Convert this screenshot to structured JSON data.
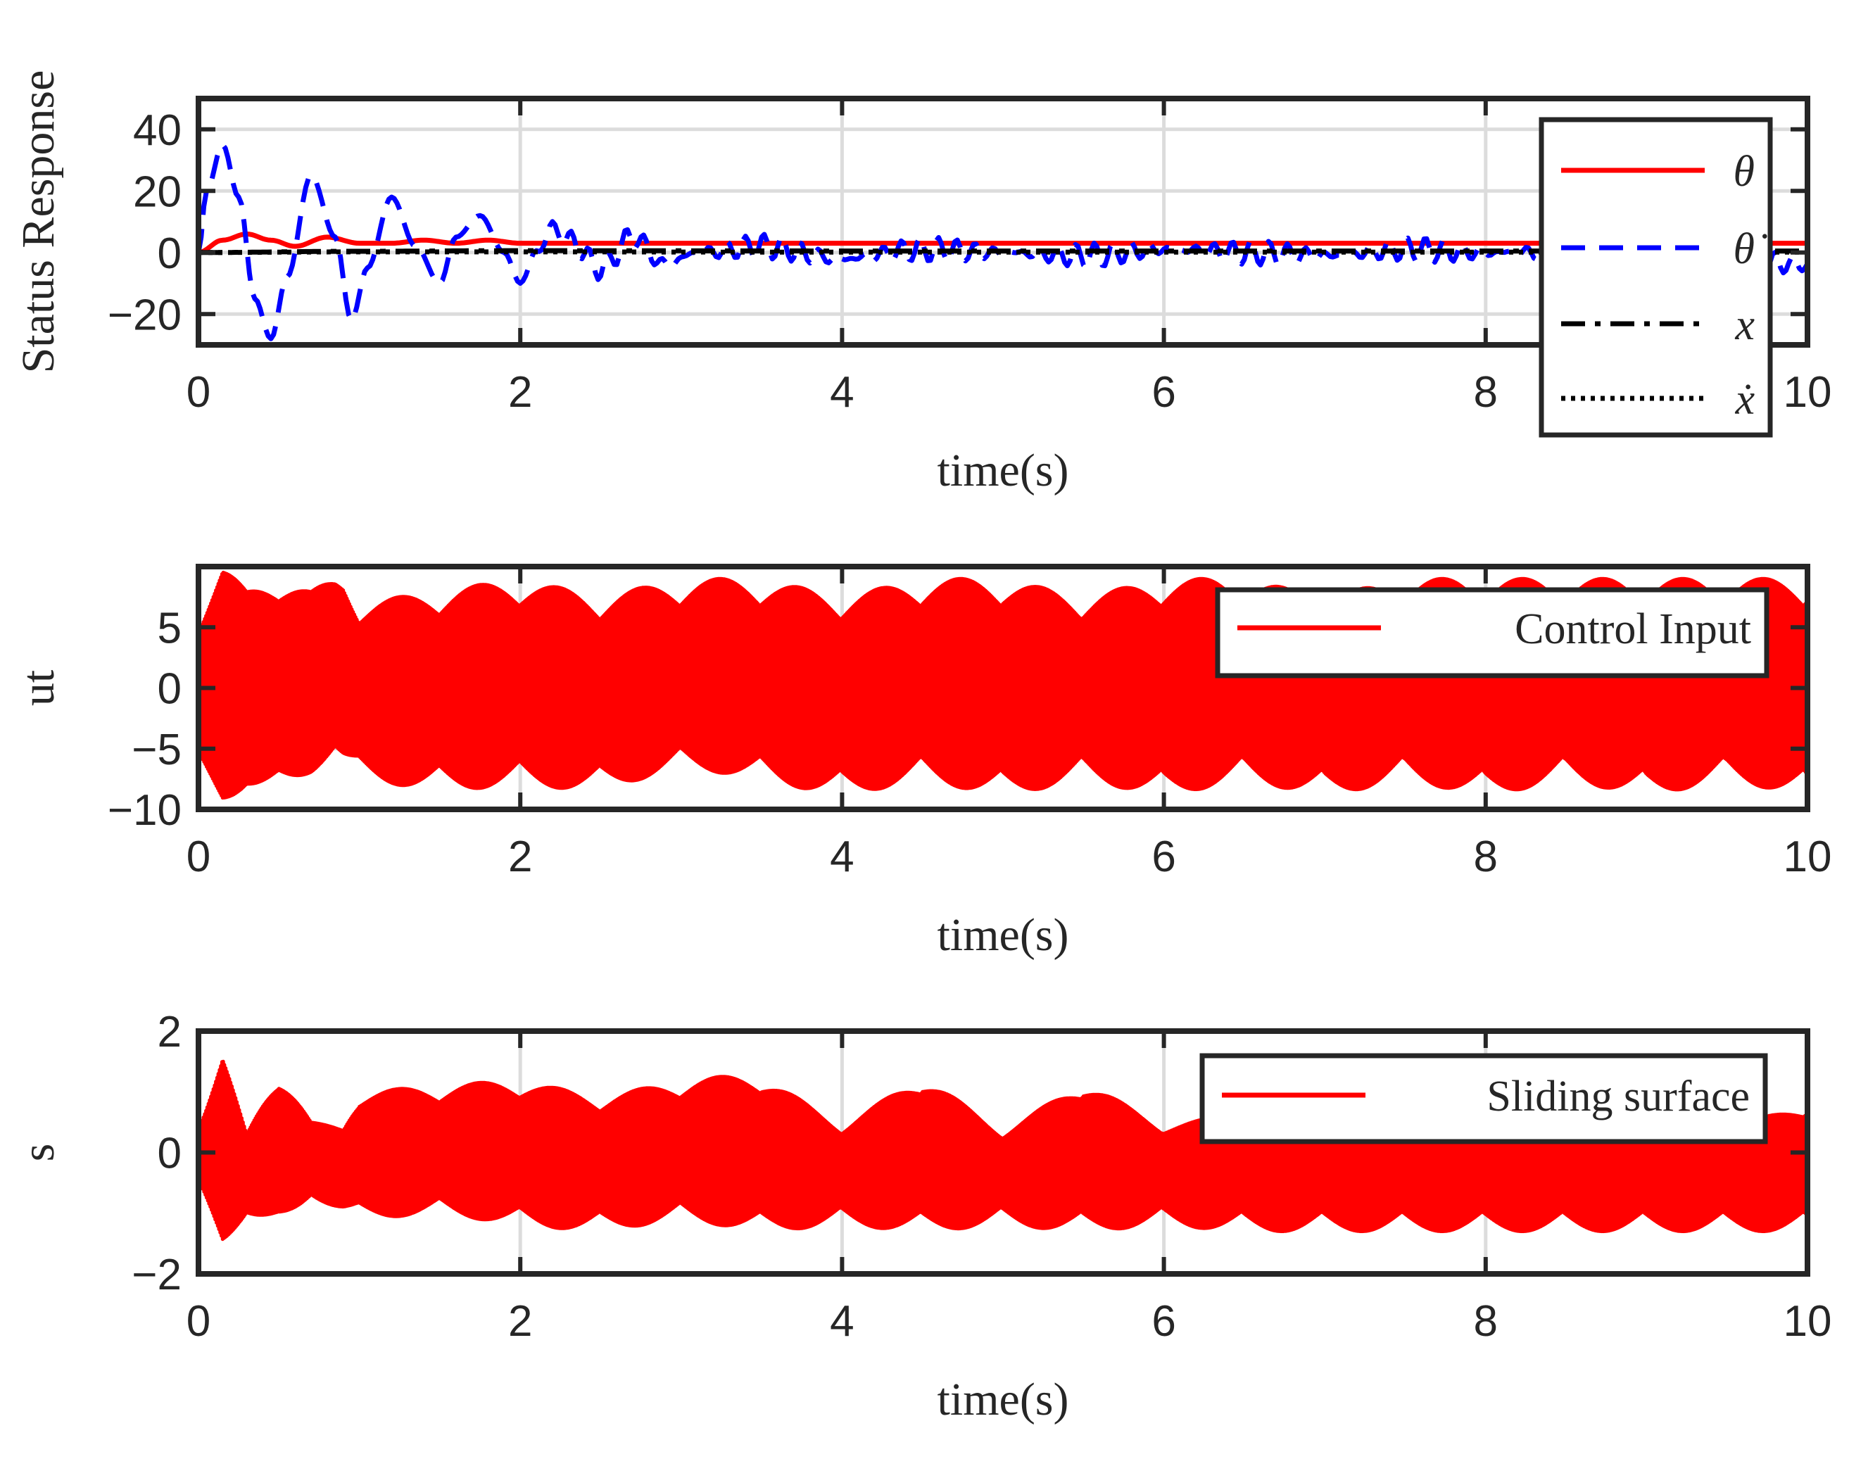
{
  "chart_data": [
    {
      "type": "line",
      "xlabel": "time(s)",
      "ylabel": "Status Response",
      "xlim": [
        0,
        10
      ],
      "ylim": [
        -30,
        50
      ],
      "xticks": [
        0,
        2,
        4,
        6,
        8,
        10
      ],
      "yticks": [
        -20,
        0,
        20,
        40
      ],
      "xtick_labels": [
        "0",
        "2",
        "4",
        "6",
        "8",
        "10"
      ],
      "ytick_labels": [
        "−20",
        "0",
        "20",
        "40"
      ],
      "grid": true,
      "legend_position": "top-right",
      "series": [
        {
          "name": "θ",
          "color": "#ff0000",
          "style": "solid",
          "x": [
            0,
            0.15,
            0.3,
            0.45,
            0.6,
            0.8,
            1.0,
            1.2,
            1.4,
            1.6,
            1.8,
            2.0,
            2.5,
            3,
            4,
            5,
            6,
            7,
            8,
            9,
            10
          ],
          "y": [
            0,
            4,
            6,
            4,
            2,
            5,
            3,
            3,
            4,
            3,
            4,
            3,
            3,
            3,
            3,
            3,
            3,
            3,
            3,
            3,
            3
          ]
        },
        {
          "name": "θ̇",
          "color": "#0000ff",
          "style": "dashed",
          "x": [
            0,
            0.05,
            0.15,
            0.25,
            0.35,
            0.45,
            0.55,
            0.7,
            0.85,
            0.95,
            1.05,
            1.2,
            1.35,
            1.5,
            1.6,
            1.75,
            1.9,
            2.0,
            2.1,
            2.2,
            2.3,
            2.5,
            2.7,
            2.9,
            3.1,
            3.5,
            4,
            4.5,
            5,
            5.5,
            6,
            6.5,
            7,
            7.5,
            8,
            8.5,
            9,
            9.5,
            10
          ],
          "y": [
            0,
            20,
            35,
            18,
            -15,
            -28,
            -8,
            25,
            5,
            -22,
            -5,
            18,
            2,
            -10,
            5,
            12,
            0,
            -10,
            0,
            8,
            4,
            -5,
            5,
            -4,
            0,
            2,
            -2,
            1,
            0,
            -1,
            1,
            0,
            -1,
            1,
            0,
            0,
            1,
            -2,
            -4
          ]
        },
        {
          "name": "x",
          "color": "#000000",
          "style": "dashdot",
          "x": [
            0,
            1,
            2,
            4,
            6,
            8,
            10
          ],
          "y": [
            0,
            0.4,
            0.6,
            0.5,
            0.5,
            0.5,
            0.5
          ]
        },
        {
          "name": "ẋ",
          "color": "#000000",
          "style": "dotted",
          "x": [
            0,
            1,
            2,
            4,
            6,
            8,
            10
          ],
          "y": [
            0,
            0.2,
            0.2,
            0.1,
            0.1,
            0.1,
            0.1
          ]
        }
      ]
    },
    {
      "type": "line",
      "xlabel": "time(s)",
      "ylabel": "ut",
      "xlim": [
        0,
        10
      ],
      "ylim": [
        -10,
        10
      ],
      "xticks": [
        0,
        2,
        4,
        6,
        8,
        10
      ],
      "yticks": [
        -10,
        -5,
        0,
        5
      ],
      "xtick_labels": [
        "0",
        "2",
        "4",
        "6",
        "8",
        "10"
      ],
      "ytick_labels": [
        "−10",
        "−5",
        "0",
        "5"
      ],
      "grid": true,
      "legend_position": "top-right",
      "series": [
        {
          "name": "Control Input",
          "color": "#ff0000",
          "style": "solid",
          "x": [
            0,
            0.15,
            0.3,
            0.5,
            0.7,
            0.85,
            0.9,
            1.0,
            1.5,
            2.0,
            2.5,
            3.0,
            3.5,
            4.0,
            4.5,
            5.0,
            5.5,
            6.0,
            6.5,
            7.0,
            7.5,
            8.0,
            8.5,
            9.0,
            9.5,
            10
          ],
          "upper": [
            6,
            10,
            8,
            9.5,
            8,
            9,
            9,
            7,
            8,
            9,
            7.5,
            9,
            9,
            7.5,
            9,
            9,
            7.5,
            9,
            9,
            7.5,
            9,
            9,
            9,
            9,
            9,
            9
          ],
          "lower": [
            -7,
            -9.5,
            -8,
            -9,
            -7,
            -5,
            -6,
            -7.5,
            -8.5,
            -8,
            -8.5,
            -6.5,
            -7.5,
            -9,
            -7.5,
            -9,
            -7.5,
            -9,
            -7.5,
            -9,
            -7.5,
            -9,
            -7.5,
            -9,
            -7.5,
            -9
          ]
        }
      ]
    },
    {
      "type": "line",
      "xlabel": "time(s)",
      "ylabel": "s",
      "xlim": [
        0,
        10
      ],
      "ylim": [
        -2,
        2
      ],
      "xticks": [
        0,
        2,
        4,
        6,
        8,
        10
      ],
      "yticks": [
        -2,
        0,
        2
      ],
      "xtick_labels": [
        "0",
        "2",
        "4",
        "6",
        "8",
        "10"
      ],
      "ytick_labels": [
        "−2",
        "0",
        "2"
      ],
      "grid": true,
      "legend_position": "top-right",
      "series": [
        {
          "name": "Sliding surface",
          "color": "#ff0000",
          "style": "solid",
          "x": [
            0,
            0.15,
            0.3,
            0.5,
            0.7,
            0.9,
            1.0,
            1.5,
            2.0,
            2.5,
            3.0,
            3.5,
            4.0,
            4.5,
            5.0,
            5.5,
            6.0,
            6.5,
            7.0,
            7.5,
            8.0,
            8.5,
            9.0,
            9.5,
            10
          ],
          "upper": [
            0.5,
            1.6,
            0.3,
            1.4,
            0.5,
            0.4,
            1.0,
            1.1,
            1.2,
            0.9,
            1.2,
            1.3,
            0.4,
            1.3,
            0.3,
            1.2,
            0.4,
            0.7,
            0.5,
            0.6,
            0.5,
            0.5,
            0.4,
            0.4,
            0.8
          ],
          "lower": [
            -0.6,
            -1.5,
            -1.0,
            -1.3,
            -0.7,
            -1.0,
            -1.1,
            -1.0,
            -1.2,
            -1.3,
            -1.1,
            -1.3,
            -1.2,
            -1.3,
            -1.2,
            -1.3,
            -1.2,
            -1.3,
            -1.3,
            -1.3,
            -1.3,
            -1.3,
            -1.3,
            -1.3,
            -1.3
          ]
        }
      ]
    }
  ]
}
